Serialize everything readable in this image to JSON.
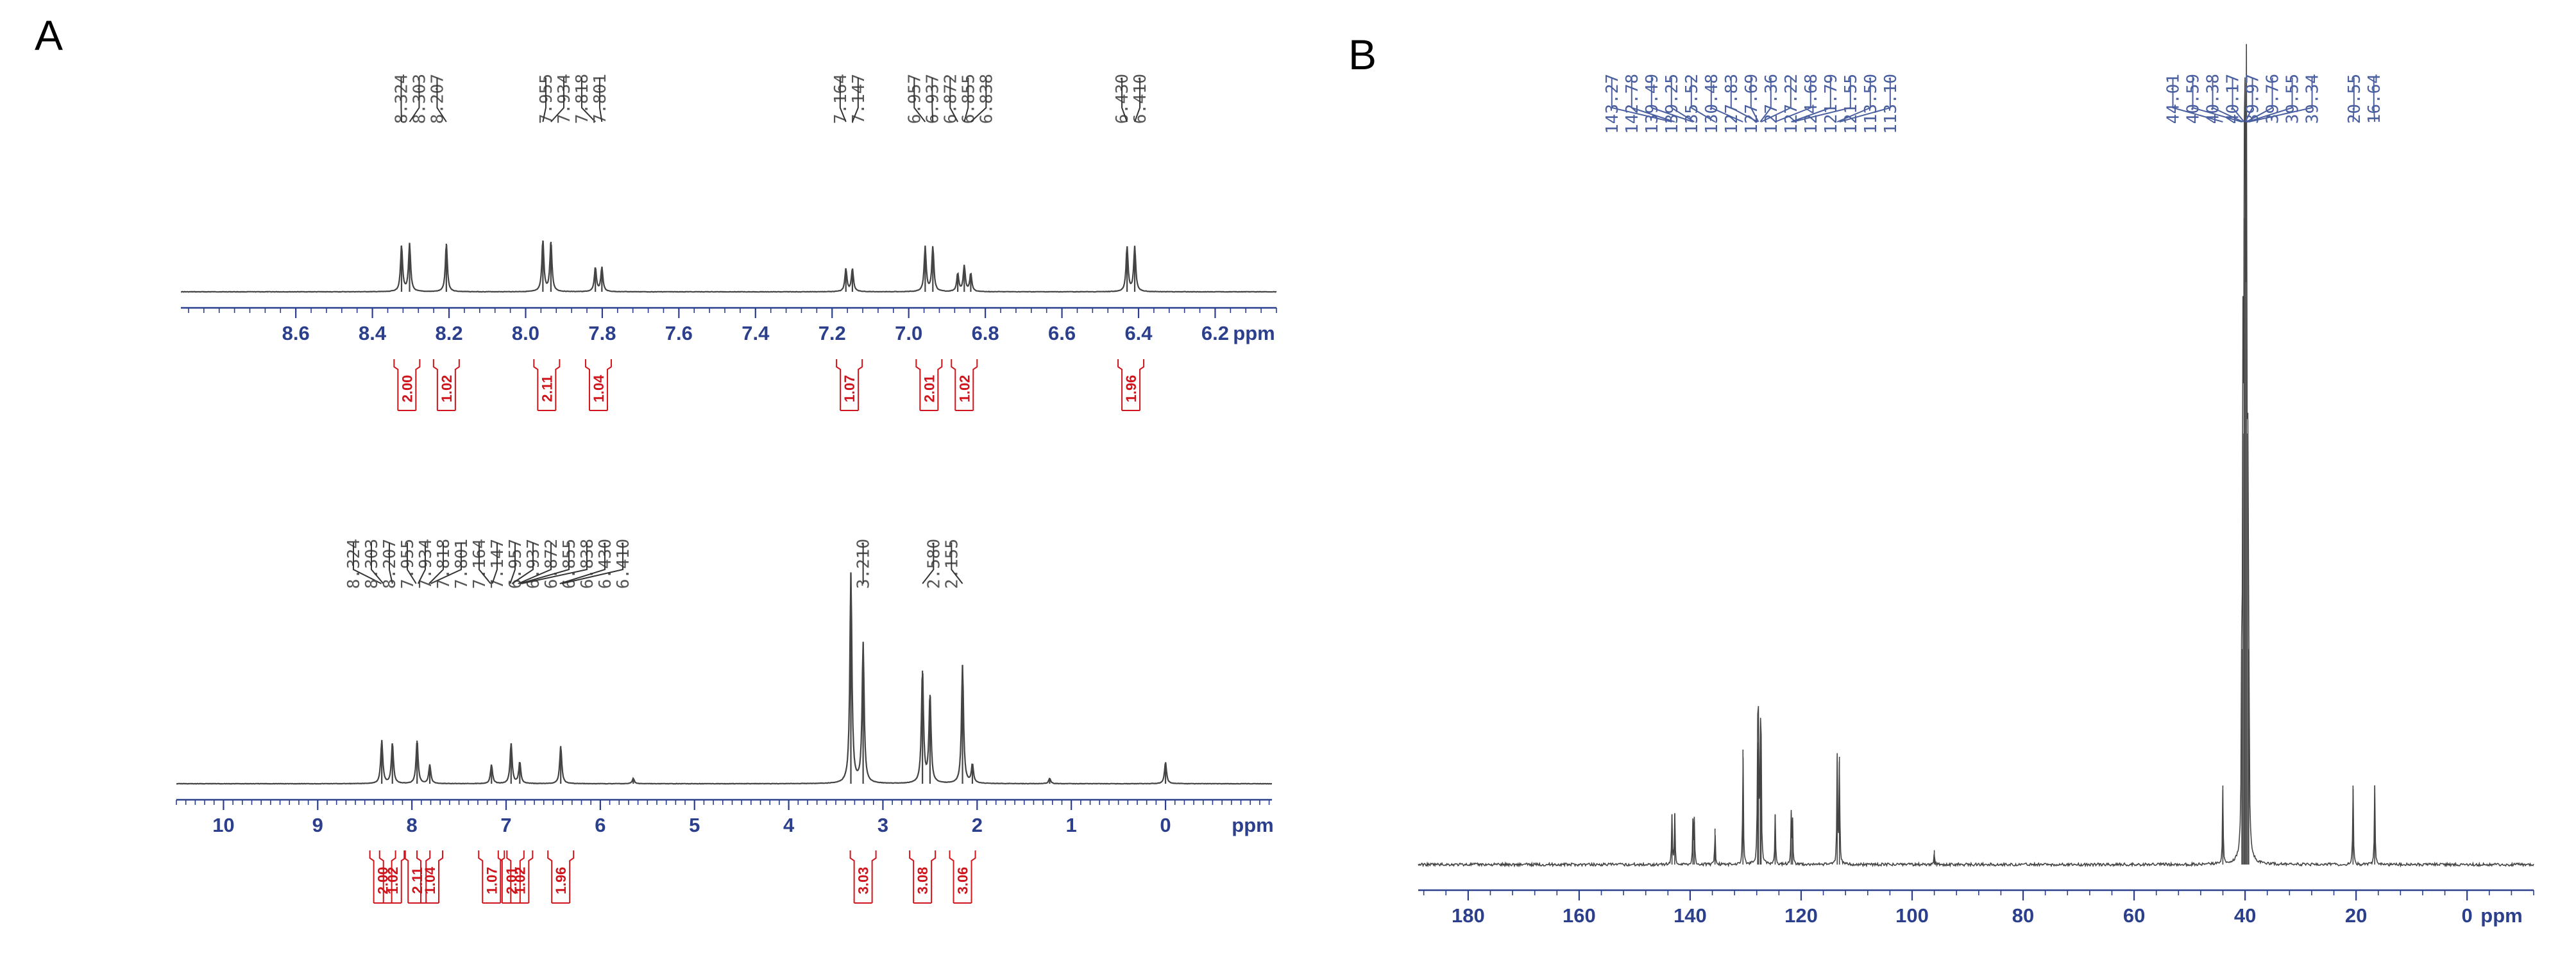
{
  "panels": {
    "a_label": "A",
    "b_label": "B"
  },
  "colors": {
    "axis": "#2b3f8c",
    "integral": "#d0141c",
    "spectrum": "#444444",
    "carbon_label": "#4a5fa0"
  },
  "chart_data": [
    {
      "id": "h1_expanded",
      "type": "line",
      "title": "",
      "xlabel": "ppm",
      "xlim": [
        8.9,
        6.04
      ],
      "reversed_x_axis": true,
      "tick_labels": [
        "8.6",
        "8.4",
        "8.2",
        "8.0",
        "7.8",
        "7.6",
        "7.4",
        "7.2",
        "7.0",
        "6.8",
        "6.6",
        "6.4",
        "6.2"
      ],
      "peak_labels": [
        "8.324",
        "8.303",
        "8.207",
        "7.955",
        "7.934",
        "7.818",
        "7.801",
        "7.164",
        "7.147",
        "6.957",
        "6.937",
        "6.872",
        "6.855",
        "6.838",
        "6.430",
        "6.410"
      ],
      "peaks": [
        {
          "ppm": 8.324,
          "height": 0.72
        },
        {
          "ppm": 8.303,
          "height": 0.75
        },
        {
          "ppm": 8.207,
          "height": 0.75
        },
        {
          "ppm": 7.955,
          "height": 0.8
        },
        {
          "ppm": 7.934,
          "height": 0.78
        },
        {
          "ppm": 7.818,
          "height": 0.38
        },
        {
          "ppm": 7.801,
          "height": 0.38
        },
        {
          "ppm": 7.164,
          "height": 0.36
        },
        {
          "ppm": 7.147,
          "height": 0.36
        },
        {
          "ppm": 6.957,
          "height": 0.7
        },
        {
          "ppm": 6.937,
          "height": 0.7
        },
        {
          "ppm": 6.872,
          "height": 0.28
        },
        {
          "ppm": 6.855,
          "height": 0.4
        },
        {
          "ppm": 6.838,
          "height": 0.28
        },
        {
          "ppm": 6.43,
          "height": 0.7
        },
        {
          "ppm": 6.41,
          "height": 0.7
        }
      ],
      "integrals": [
        {
          "ppm": 8.31,
          "value": "2.00"
        },
        {
          "ppm": 8.207,
          "value": "1.02"
        },
        {
          "ppm": 7.945,
          "value": "2.11"
        },
        {
          "ppm": 7.81,
          "value": "1.04"
        },
        {
          "ppm": 7.155,
          "value": "1.07"
        },
        {
          "ppm": 6.947,
          "value": "2.01"
        },
        {
          "ppm": 6.855,
          "value": "1.02"
        },
        {
          "ppm": 6.42,
          "value": "1.96"
        }
      ]
    },
    {
      "id": "h1_full",
      "type": "line",
      "title": "",
      "xlabel": "ppm",
      "xlim": [
        10.5,
        -1.13
      ],
      "reversed_x_axis": true,
      "tick_labels": [
        "10",
        "9",
        "8",
        "7",
        "6",
        "5",
        "4",
        "3",
        "2",
        "1",
        "0"
      ],
      "peak_labels": [
        "8.324",
        "8.303",
        "8.207",
        "7.955",
        "7.934",
        "7.818",
        "7.801",
        "7.164",
        "7.147",
        "6.957",
        "6.937",
        "6.872",
        "6.855",
        "6.838",
        "6.430",
        "6.410",
        "3.210",
        "2.580",
        "2.155"
      ],
      "peaks": [
        {
          "ppm": 8.32,
          "height": 0.16
        },
        {
          "ppm": 8.207,
          "height": 0.15
        },
        {
          "ppm": 7.945,
          "height": 0.16
        },
        {
          "ppm": 7.81,
          "height": 0.07
        },
        {
          "ppm": 7.155,
          "height": 0.07
        },
        {
          "ppm": 6.947,
          "height": 0.15
        },
        {
          "ppm": 6.855,
          "height": 0.08
        },
        {
          "ppm": 6.42,
          "height": 0.14
        },
        {
          "ppm": 5.65,
          "height": 0.02
        },
        {
          "ppm": 3.34,
          "height": 0.78
        },
        {
          "ppm": 3.21,
          "height": 0.52
        },
        {
          "ppm": 2.58,
          "height": 0.42
        },
        {
          "ppm": 2.5,
          "height": 0.33
        },
        {
          "ppm": 2.155,
          "height": 0.44
        },
        {
          "ppm": 2.05,
          "height": 0.07
        },
        {
          "ppm": 1.23,
          "height": 0.02
        },
        {
          "ppm": 0.0,
          "height": 0.08
        }
      ],
      "integrals": [
        {
          "ppm": 8.31,
          "value": "2.00"
        },
        {
          "ppm": 8.207,
          "value": "1.02"
        },
        {
          "ppm": 7.945,
          "value": "2.11"
        },
        {
          "ppm": 7.81,
          "value": "1.04"
        },
        {
          "ppm": 7.155,
          "value": "1.07"
        },
        {
          "ppm": 6.947,
          "value": "2.01"
        },
        {
          "ppm": 6.855,
          "value": "1.02"
        },
        {
          "ppm": 6.42,
          "value": "1.96"
        },
        {
          "ppm": 3.21,
          "value": "3.03"
        },
        {
          "ppm": 2.58,
          "value": "3.08"
        },
        {
          "ppm": 2.155,
          "value": "3.06"
        }
      ]
    },
    {
      "id": "c13",
      "type": "line",
      "title": "",
      "xlabel": "ppm",
      "xlim": [
        189,
        -12
      ],
      "reversed_x_axis": true,
      "tick_labels": [
        "180",
        "160",
        "140",
        "120",
        "100",
        "80",
        "60",
        "40",
        "20",
        "0"
      ],
      "peak_labels": [
        "143.27",
        "142.78",
        "139.49",
        "139.25",
        "135.52",
        "130.48",
        "127.83",
        "127.69",
        "127.36",
        "127.22",
        "124.68",
        "121.79",
        "121.55",
        "113.50",
        "113.10",
        "44.01",
        "40.59",
        "40.38",
        "40.17",
        "39.97",
        "39.76",
        "39.55",
        "39.34",
        "20.55",
        "16.64"
      ],
      "peaks": [
        {
          "ppm": 143.27,
          "height": 0.07
        },
        {
          "ppm": 142.78,
          "height": 0.07
        },
        {
          "ppm": 139.49,
          "height": 0.06
        },
        {
          "ppm": 139.25,
          "height": 0.06
        },
        {
          "ppm": 135.52,
          "height": 0.05
        },
        {
          "ppm": 130.48,
          "height": 0.16
        },
        {
          "ppm": 127.83,
          "height": 0.16
        },
        {
          "ppm": 127.69,
          "height": 0.17
        },
        {
          "ppm": 127.36,
          "height": 0.17
        },
        {
          "ppm": 127.22,
          "height": 0.16
        },
        {
          "ppm": 124.68,
          "height": 0.07
        },
        {
          "ppm": 121.79,
          "height": 0.07
        },
        {
          "ppm": 121.55,
          "height": 0.06
        },
        {
          "ppm": 113.5,
          "height": 0.15
        },
        {
          "ppm": 113.1,
          "height": 0.15
        },
        {
          "ppm": 96.0,
          "height": 0.02
        },
        {
          "ppm": 44.01,
          "height": 0.11
        },
        {
          "ppm": 40.59,
          "height": 0.3
        },
        {
          "ppm": 40.38,
          "height": 0.6
        },
        {
          "ppm": 40.17,
          "height": 0.9
        },
        {
          "ppm": 39.97,
          "height": 1.0
        },
        {
          "ppm": 39.76,
          "height": 0.9
        },
        {
          "ppm": 39.55,
          "height": 0.6
        },
        {
          "ppm": 39.34,
          "height": 0.3
        },
        {
          "ppm": 20.55,
          "height": 0.11
        },
        {
          "ppm": 16.64,
          "height": 0.11
        }
      ],
      "integrals": []
    }
  ]
}
